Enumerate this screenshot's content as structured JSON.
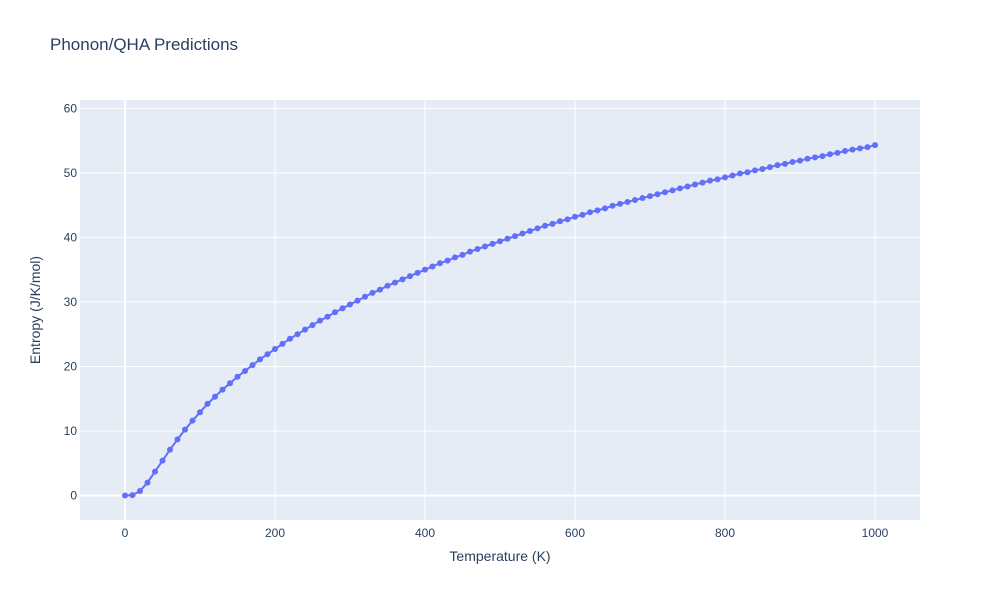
{
  "chart_data": {
    "type": "line",
    "title": "Phonon/QHA Predictions",
    "xlabel": "Temperature (K)",
    "ylabel": "Entropy (J/K/mol)",
    "xlim": [
      -60,
      1060
    ],
    "ylim": [
      -3.8,
      61.3
    ],
    "xticks": [
      0,
      200,
      400,
      600,
      800,
      1000
    ],
    "yticks": [
      0,
      10,
      20,
      30,
      40,
      50,
      60
    ],
    "grid": true,
    "legend": "none",
    "colors": {
      "line": "#636efa",
      "plot_bg": "#e5ecf6",
      "grid": "#ffffff",
      "text": "#2a3f5f"
    },
    "series": [
      {
        "x": [
          0,
          10,
          20,
          30,
          40,
          50,
          60,
          70,
          80,
          90,
          100,
          110,
          120,
          130,
          140,
          150,
          160,
          170,
          180,
          190,
          200,
          210,
          220,
          230,
          240,
          250,
          260,
          270,
          280,
          290,
          300,
          310,
          320,
          330,
          340,
          350,
          360,
          370,
          380,
          390,
          400,
          410,
          420,
          430,
          440,
          450,
          460,
          470,
          480,
          490,
          500,
          510,
          520,
          530,
          540,
          550,
          560,
          570,
          580,
          590,
          600,
          610,
          620,
          630,
          640,
          650,
          660,
          670,
          680,
          690,
          700,
          710,
          720,
          730,
          740,
          750,
          760,
          770,
          780,
          790,
          800,
          810,
          820,
          830,
          840,
          850,
          860,
          870,
          880,
          890,
          900,
          910,
          920,
          930,
          940,
          950,
          960,
          970,
          980,
          990,
          1000
        ],
        "y": [
          0,
          0.05,
          0.7,
          2.0,
          3.7,
          5.4,
          7.1,
          8.7,
          10.2,
          11.6,
          12.9,
          14.2,
          15.3,
          16.4,
          17.4,
          18.4,
          19.3,
          20.2,
          21.1,
          21.9,
          22.7,
          23.5,
          24.3,
          25.0,
          25.7,
          26.4,
          27.1,
          27.7,
          28.4,
          29.0,
          29.6,
          30.2,
          30.8,
          31.4,
          31.9,
          32.5,
          33.0,
          33.5,
          34.0,
          34.5,
          35.0,
          35.5,
          36.0,
          36.4,
          36.9,
          37.3,
          37.8,
          38.2,
          38.6,
          39.0,
          39.4,
          39.8,
          40.2,
          40.6,
          41.0,
          41.4,
          41.8,
          42.1,
          42.5,
          42.8,
          43.2,
          43.5,
          43.9,
          44.2,
          44.5,
          44.9,
          45.2,
          45.5,
          45.8,
          46.1,
          46.4,
          46.7,
          47.0,
          47.3,
          47.6,
          47.9,
          48.2,
          48.5,
          48.8,
          49.0,
          49.3,
          49.6,
          49.9,
          50.1,
          50.4,
          50.6,
          50.9,
          51.2,
          51.4,
          51.7,
          51.9,
          52.2,
          52.4,
          52.6,
          52.9,
          53.1,
          53.4,
          53.6,
          53.8,
          54.0,
          54.3
        ]
      }
    ]
  }
}
